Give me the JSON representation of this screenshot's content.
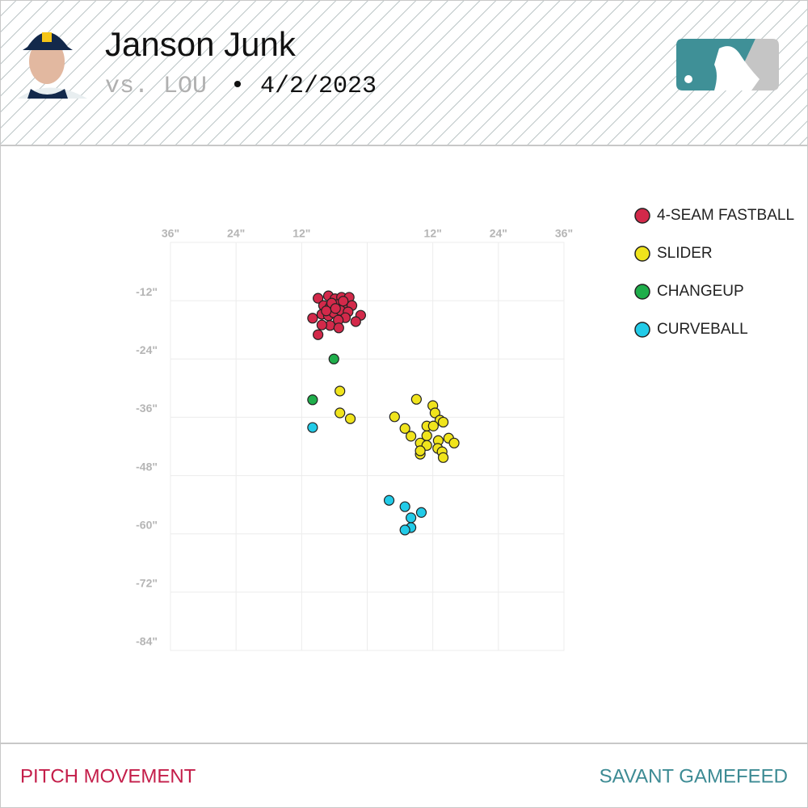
{
  "chart_data": {
    "type": "scatter",
    "title": "Janson Junk",
    "opponent": "vs. LOU",
    "separator": "•",
    "date": "4/2/2023",
    "xlim": [
      -36,
      36
    ],
    "xticks": [
      {
        "value": -36,
        "label": "36\""
      },
      {
        "value": -24,
        "label": "24\""
      },
      {
        "value": -12,
        "label": "12\""
      },
      {
        "value": 0,
        "label": null
      },
      {
        "value": 12,
        "label": "12\""
      },
      {
        "value": 24,
        "label": "24\""
      },
      {
        "value": 36,
        "label": "36\""
      }
    ],
    "ylim": [
      -84,
      0
    ],
    "yticks": [
      {
        "value": -12,
        "label": "-12\""
      },
      {
        "value": -24,
        "label": "-24\""
      },
      {
        "value": -36,
        "label": "-36\""
      },
      {
        "value": -48,
        "label": "-48\""
      },
      {
        "value": -60,
        "label": "-60\""
      },
      {
        "value": -72,
        "label": "-72\""
      },
      {
        "value": -84,
        "label": "-84\""
      }
    ],
    "grid": true,
    "series": [
      {
        "name": "4-SEAM FASTBALL",
        "color": "#d3294a",
        "x": [
          -9.0,
          -7.1,
          -5.9,
          -4.7,
          -3.3,
          -8.0,
          -6.8,
          -5.5,
          -4.3,
          -2.8,
          -10.0,
          -8.3,
          -7.1,
          -6.1,
          -4.9,
          -3.5,
          -1.2,
          -2.1,
          -4.0,
          -5.3,
          -6.8,
          -8.3,
          -5.2,
          -9.0,
          -6.5,
          -7.5,
          -5.8,
          -4.4
        ],
        "y": [
          -11.5,
          -11.0,
          -11.6,
          -11.3,
          -11.3,
          -13.0,
          -13.3,
          -12.8,
          -13.1,
          -13.0,
          -15.6,
          -14.8,
          -15.1,
          -14.5,
          -14.0,
          -14.3,
          -15.0,
          -16.3,
          -15.5,
          -16.0,
          -17.1,
          -17.0,
          -17.6,
          -19.0,
          -12.5,
          -14.1,
          -13.6,
          -12.1
        ]
      },
      {
        "name": "SLIDER",
        "color": "#f0e41c",
        "x": [
          -5.0,
          -5.0,
          -3.1,
          5.0,
          9.0,
          12.0,
          12.4,
          13.3,
          13.9,
          6.9,
          8.0,
          10.9,
          12.1,
          10.9,
          14.9,
          15.9,
          13.0,
          9.7,
          10.9,
          12.9,
          13.7,
          9.7,
          13.9,
          9.7
        ],
        "y": [
          -30.6,
          -35.1,
          -36.3,
          -35.9,
          -32.3,
          -33.6,
          -35.1,
          -36.6,
          -37.0,
          -38.3,
          -39.9,
          -37.8,
          -37.8,
          -39.8,
          -40.3,
          -41.3,
          -40.8,
          -41.3,
          -41.8,
          -42.4,
          -43.1,
          -43.6,
          -44.3,
          -42.9
        ]
      },
      {
        "name": "CHANGEUP",
        "color": "#1fae4b",
        "x": [
          -6.1,
          -10.0
        ],
        "y": [
          -24.0,
          -32.4
        ]
      },
      {
        "name": "CURVEBALL",
        "color": "#22cbe8",
        "x": [
          -10.0,
          4.0,
          6.9,
          9.9,
          8.0,
          8.0,
          6.9
        ],
        "y": [
          -38.1,
          -53.1,
          -54.4,
          -55.6,
          -56.7,
          -58.7,
          -59.2
        ]
      }
    ],
    "legend_position": "right"
  },
  "footer": {
    "left": "PITCH MOVEMENT",
    "right": "SAVANT GAMEFEED"
  }
}
